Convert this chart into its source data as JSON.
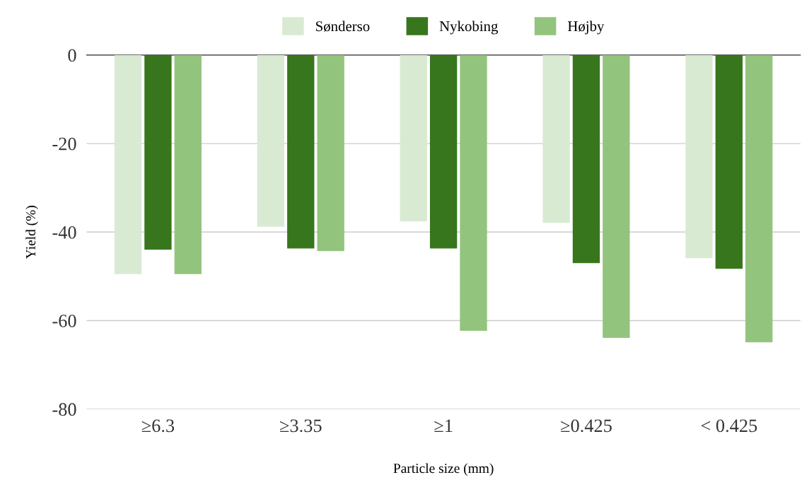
{
  "chart_data": {
    "type": "bar",
    "xlabel": "Particle size (mm)",
    "ylabel": "Yield (%)",
    "categories": [
      "≥6.3",
      "≥3.35",
      "≥1",
      "≥0.425",
      "< 0.425"
    ],
    "series": [
      {
        "name": "Sønderso",
        "color": "#d9ead3",
        "values": [
          -49.5,
          -38.8,
          -37.6,
          -37.9,
          -45.9
        ]
      },
      {
        "name": "Nykobing",
        "color": "#38761d",
        "values": [
          -44.0,
          -43.7,
          -43.7,
          -47.0,
          -48.3
        ]
      },
      {
        "name": "Højby",
        "color": "#93c47d",
        "values": [
          -49.5,
          -44.3,
          -62.3,
          -63.9,
          -64.9
        ]
      }
    ],
    "ylim": [
      -80,
      0
    ],
    "yticks": [
      0,
      -20,
      -40,
      -60,
      -80
    ],
    "grid": "y",
    "legend": "top"
  }
}
